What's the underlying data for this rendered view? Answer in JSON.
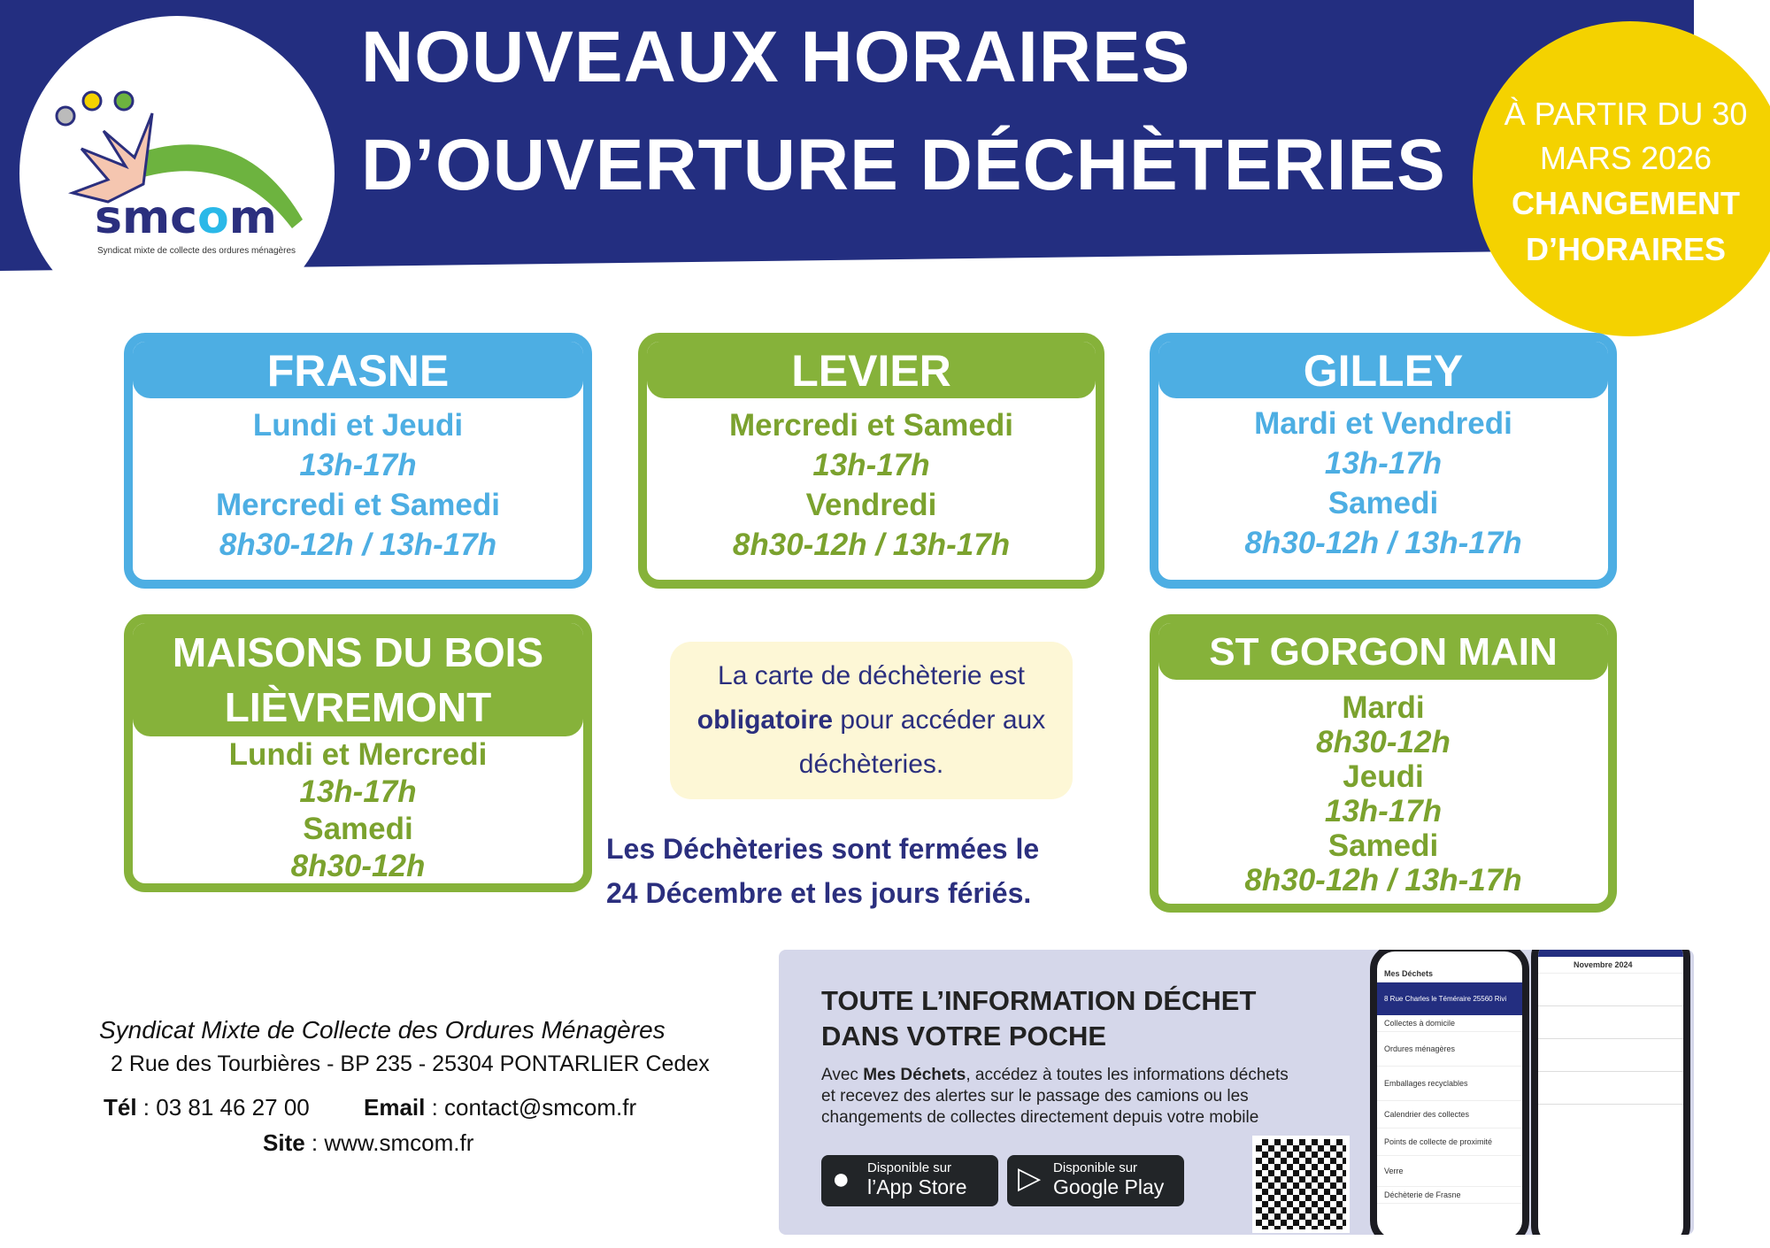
{
  "header": {
    "title_line1": "NOUVEAUX HORAIRES",
    "title_line2": "D’OUVERTURE DÉCHÈTERIES",
    "logo_text": "smcom",
    "logo_subtitle": "Syndicat mixte de collecte des ordures ménagères"
  },
  "badge": {
    "line1": "À PARTIR DU 30",
    "line2": "MARS 2026",
    "line3": "CHANGEMENT",
    "line4": "D’HORAIRES"
  },
  "sites": {
    "frasne": {
      "name": "FRASNE",
      "lines": [
        "Lundi et Jeudi",
        "13h-17h",
        "Mercredi et Samedi",
        "8h30-12h / 13h-17h"
      ]
    },
    "levier": {
      "name": "LEVIER",
      "lines": [
        "Mercredi et Samedi",
        "13h-17h",
        "Vendredi",
        "8h30-12h / 13h-17h"
      ]
    },
    "gilley": {
      "name": "GILLEY",
      "lines": [
        "Mardi et Vendredi",
        "13h-17h",
        "Samedi",
        "8h30-12h / 13h-17h"
      ]
    },
    "maisons": {
      "name1": "MAISONS DU BOIS",
      "name2": "LIÈVREMONT",
      "lines": [
        "Lundi et Mercredi",
        "13h-17h",
        "Samedi",
        "8h30-12h"
      ]
    },
    "stgorgon": {
      "name": "ST GORGON MAIN",
      "lines": [
        "Mardi",
        "8h30-12h",
        "Jeudi",
        "13h-17h",
        "Samedi",
        "8h30-12h / 13h-17h"
      ]
    }
  },
  "note": {
    "l1": "La carte de déchèterie est",
    "bold": "obligatoire",
    "l2": " pour accéder aux",
    "l3": "déchèteries."
  },
  "closed": {
    "l1": "Les Déchèteries sont fermées le",
    "l2": "24 Décembre et les jours fériés."
  },
  "footer": {
    "org": "Syndicat Mixte de Collecte des Ordures Ménagères",
    "address": "2 Rue des Tourbières - BP 235 - 25304 PONTARLIER Cedex",
    "tel_label": "Tél",
    "tel": " : 03 81 46 27 00",
    "email_label": "Email",
    "email": " : contact@smcom.fr",
    "site_label": "Site",
    "site": " : www.smcom.fr"
  },
  "app": {
    "title1": "TOUTE L’INFORMATION DÉCHET",
    "title2": "DANS VOTRE POCHE",
    "desc_pre": "Avec ",
    "desc_bold": "Mes Déchets",
    "desc_1": ", accédez à toutes les informations déchets",
    "desc_2": "et recevez des alertes sur le passage des camions ou les",
    "desc_3": "changements de collectes directement depuis votre mobile",
    "appstore_small": "Disponible sur",
    "appstore_big": "l’App Store",
    "gplay_small": "Disponible sur",
    "gplay_big": "Google Play",
    "phone": {
      "app_name": "Mes Déchets",
      "address": "8 Rue Charles le Téméraire 25560 Rivi",
      "rows": [
        "Collectes à domicile",
        "Ordures ménagères",
        "Emballages recyclables",
        "Calendrier des collectes",
        "Points de collecte de proximité",
        "Verre",
        "Déchèterie de Frasne"
      ],
      "month": "Novembre 2024"
    }
  },
  "colors": {
    "navy": "#232E80",
    "blue": "#4DAEE3",
    "green": "#86B23A",
    "yellow": "#F4D200"
  }
}
